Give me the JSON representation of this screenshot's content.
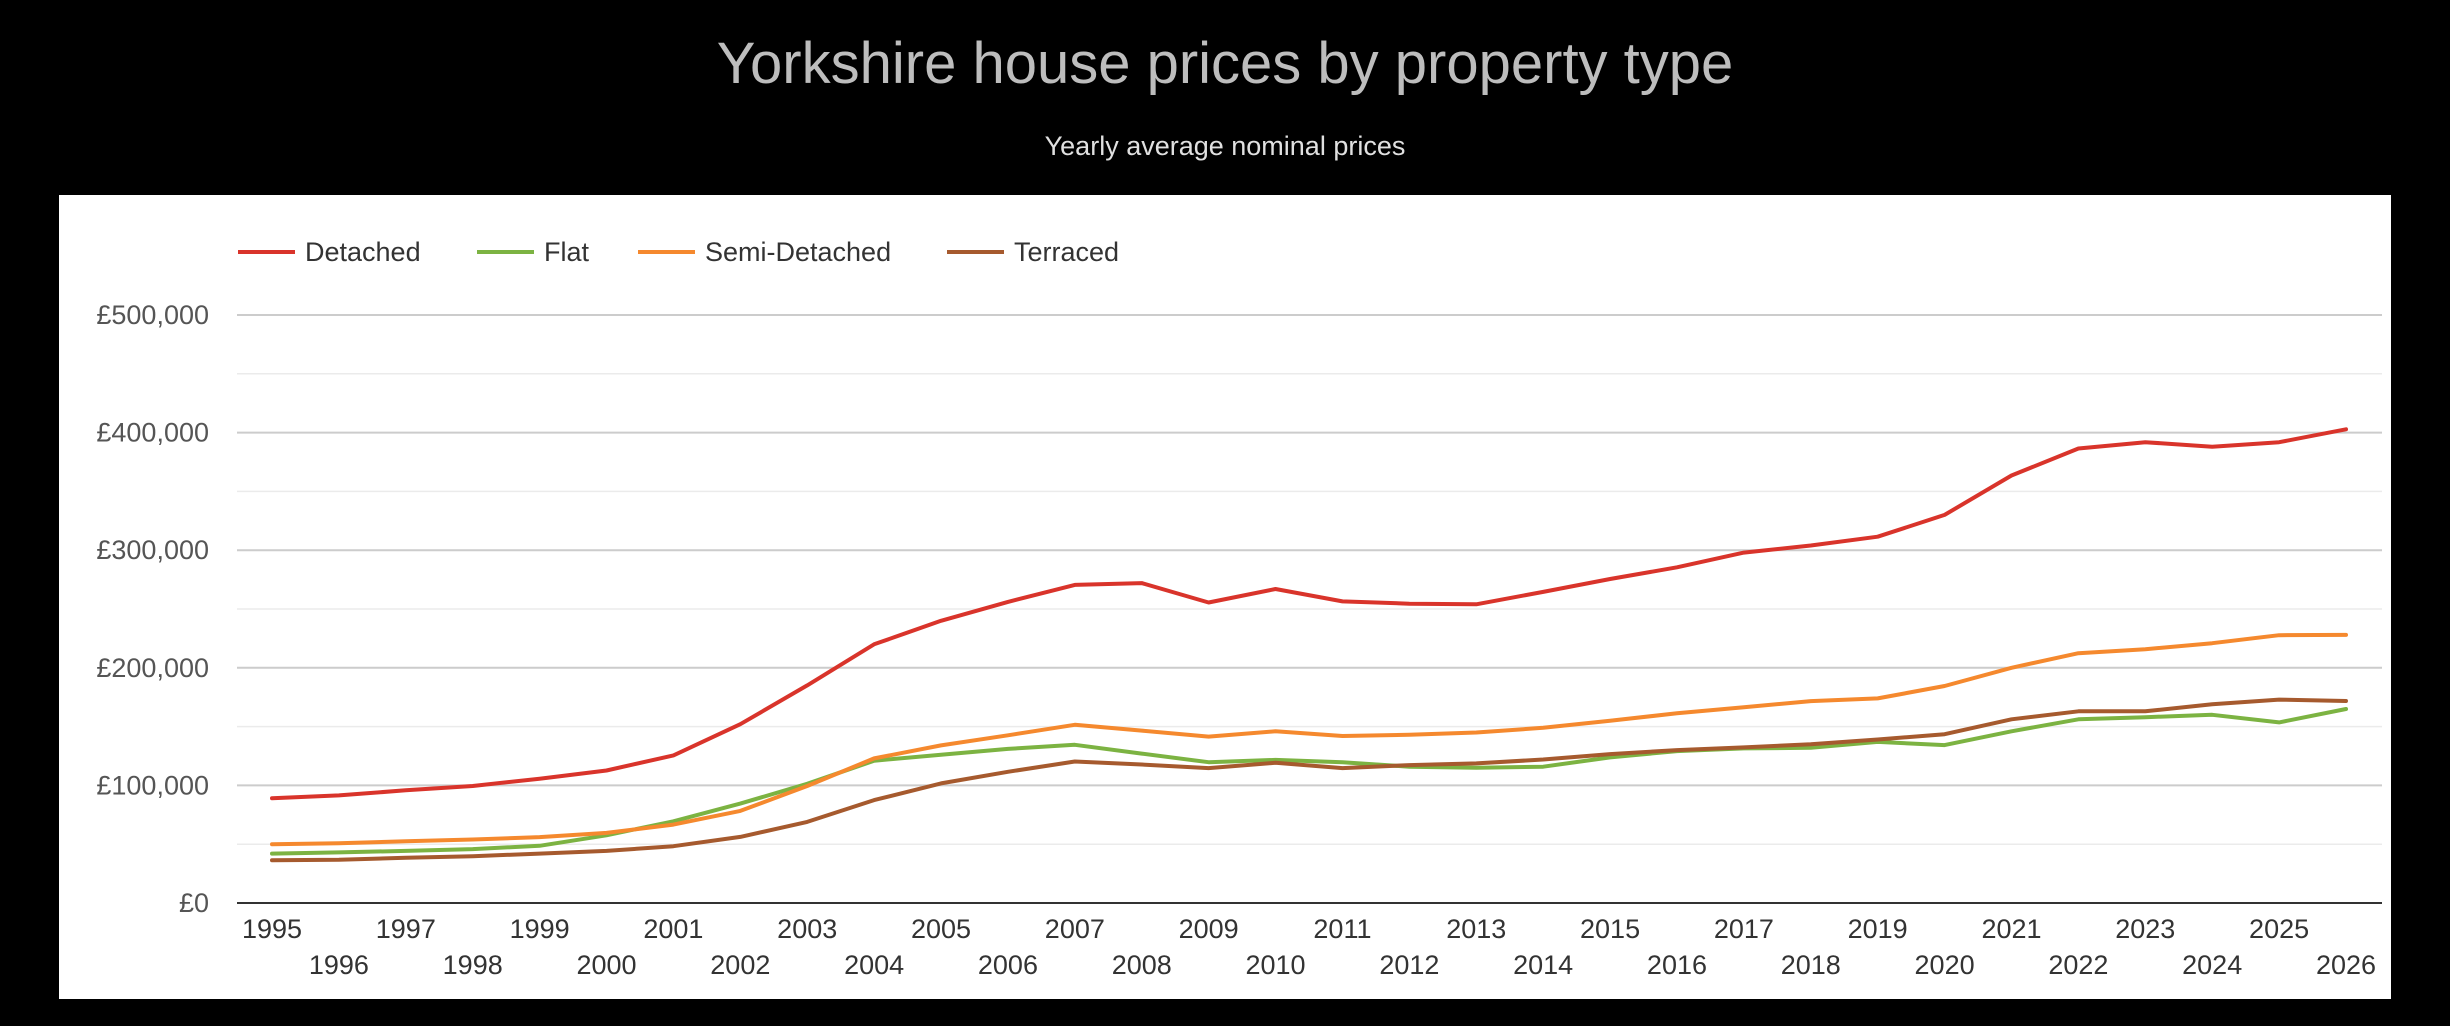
{
  "header": {
    "title": "Yorkshire house prices by property type",
    "subtitle": "Yearly average nominal prices"
  },
  "chart_data": {
    "type": "line",
    "title": "Yorkshire house prices by property type",
    "subtitle": "Yearly average nominal prices",
    "xlabel": "",
    "ylabel": "",
    "ylim": [
      0,
      500000
    ],
    "y_ticks": [
      0,
      100000,
      200000,
      300000,
      400000,
      500000
    ],
    "y_tick_labels": [
      "£0",
      "£100,000",
      "£200,000",
      "£300,000",
      "£400,000",
      "£500,000"
    ],
    "minor_gridlines": true,
    "legend_position": "top-left",
    "x": [
      1995,
      1996,
      1997,
      1998,
      1999,
      2000,
      2001,
      2002,
      2003,
      2004,
      2005,
      2006,
      2007,
      2008,
      2009,
      2010,
      2011,
      2012,
      2013,
      2014,
      2015,
      2016,
      2017,
      2018,
      2019,
      2020,
      2021,
      2022,
      2023,
      2024,
      2025,
      2026
    ],
    "x_tick_labels": [
      "1995",
      "1996",
      "1997",
      "1998",
      "1999",
      "2000",
      "2001",
      "2002",
      "2003",
      "2004",
      "2005",
      "2006",
      "2007",
      "2008",
      "2009",
      "2010",
      "2011",
      "2012",
      "2013",
      "2014",
      "2015",
      "2016",
      "2017",
      "2018",
      "2019",
      "2020",
      "2021",
      "2022",
      "2023",
      "2024",
      "2025",
      "2026"
    ],
    "series": [
      {
        "name": "Detached",
        "color": "#d9342b",
        "values": [
          89000,
          91500,
          95800,
          99500,
          105700,
          112700,
          125500,
          152000,
          185000,
          220000,
          240000,
          256000,
          270500,
          272000,
          255500,
          267000,
          256500,
          254500,
          254000,
          264500,
          275500,
          285500,
          298000,
          304000,
          311500,
          330000,
          363500,
          386500,
          391800,
          388000,
          391800,
          402800
        ]
      },
      {
        "name": "Flat",
        "color": "#7cb342",
        "values": [
          42000,
          43000,
          44300,
          45800,
          48600,
          57600,
          69500,
          84500,
          101400,
          121000,
          126000,
          131000,
          134500,
          127000,
          119700,
          121700,
          119700,
          115900,
          115000,
          115900,
          123800,
          129200,
          131500,
          132000,
          137000,
          134300,
          146000,
          156200,
          158000,
          160000,
          153600,
          165000
        ]
      },
      {
        "name": "Semi-Detached",
        "color": "#f5892e",
        "values": [
          50000,
          50800,
          52500,
          54000,
          56000,
          59600,
          66700,
          78300,
          99500,
          123000,
          134000,
          142600,
          151500,
          146600,
          141500,
          146000,
          142000,
          143000,
          145000,
          149000,
          155000,
          161300,
          166400,
          171700,
          174000,
          184500,
          200000,
          212400,
          215800,
          220900,
          227700,
          228000
        ]
      },
      {
        "name": "Terraced",
        "color": "#a65a2e",
        "values": [
          36400,
          36700,
          38400,
          39800,
          42000,
          44300,
          48300,
          56200,
          69000,
          87500,
          101700,
          111600,
          120300,
          117800,
          114700,
          119200,
          114700,
          117300,
          118700,
          122000,
          126600,
          130000,
          132300,
          135000,
          139000,
          143500,
          156200,
          163000,
          163000,
          169000,
          173000,
          171800
        ]
      }
    ]
  }
}
